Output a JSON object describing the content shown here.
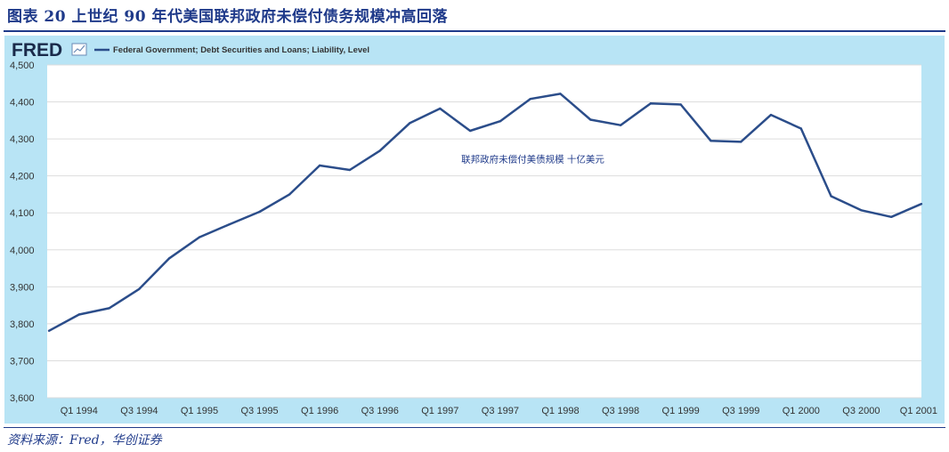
{
  "figure": {
    "title": "图表 20 上世纪 90 年代美国联邦政府未偿付债务规模冲高回落",
    "source": "资料来源：Fred，华创证券"
  },
  "header": {
    "logo": "FRED",
    "legend_label": "Federal Government; Debt Securities and Loans; Liability, Level"
  },
  "colors": {
    "line": "#2b4d8a",
    "frame_bg": "#b8e4f5",
    "plot_bg": "#ffffff",
    "grid": "#dddddd",
    "title": "#1f3a8a"
  },
  "chart_data": {
    "type": "line",
    "annotation": "联邦政府未偿付美债规模 十亿美元",
    "ylim": [
      3600,
      4500
    ],
    "yticks": [
      "3,600",
      "3,700",
      "3,800",
      "3,900",
      "4,000",
      "4,100",
      "4,200",
      "4,300",
      "4,400",
      "4,500"
    ],
    "ytick_values": [
      3600,
      3700,
      3800,
      3900,
      4000,
      4100,
      4200,
      4300,
      4400,
      4500
    ],
    "xticks": [
      "Q1 1994",
      "Q3 1994",
      "Q1 1995",
      "Q3 1995",
      "Q1 1996",
      "Q3 1996",
      "Q1 1997",
      "Q3 1997",
      "Q1 1998",
      "Q3 1998",
      "Q1 1999",
      "Q3 1999",
      "Q1 2000",
      "Q3 2000",
      "Q1 2001"
    ],
    "x": [
      "Q4 1993",
      "Q1 1994",
      "Q2 1994",
      "Q3 1994",
      "Q4 1994",
      "Q1 1995",
      "Q2 1995",
      "Q3 1995",
      "Q4 1995",
      "Q1 1996",
      "Q2 1996",
      "Q3 1996",
      "Q4 1996",
      "Q1 1997",
      "Q2 1997",
      "Q3 1997",
      "Q4 1997",
      "Q1 1998",
      "Q2 1998",
      "Q3 1998",
      "Q4 1998",
      "Q1 1999",
      "Q2 1999",
      "Q3 1999",
      "Q4 1999",
      "Q1 2000",
      "Q2 2000",
      "Q3 2000",
      "Q4 2000",
      "Q1 2001"
    ],
    "series": [
      {
        "name": "Federal Government; Debt Securities and Loans; Liability, Level",
        "values": [
          3781,
          3825,
          3842,
          3894,
          3977,
          4034,
          4069,
          4103,
          4150,
          4228,
          4216,
          4268,
          4343,
          4382,
          4322,
          4348,
          4408,
          4422,
          4352,
          4337,
          4396,
          4393,
          4295,
          4292,
          4365,
          4328,
          4145,
          4107,
          4089,
          4124
        ]
      }
    ],
    "grid": true
  }
}
